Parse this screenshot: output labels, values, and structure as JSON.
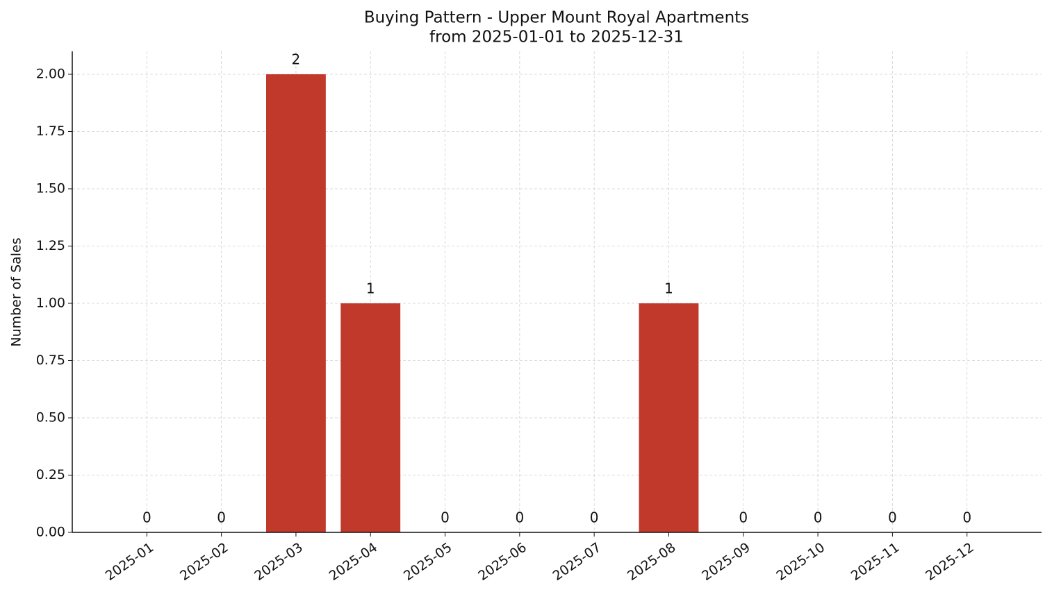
{
  "chart_data": {
    "type": "bar",
    "title": "Buying Pattern - Upper Mount Royal Apartments",
    "subtitle": "from 2025-01-01 to 2025-12-31",
    "y_label": "Number of Sales",
    "categories": [
      "2025-01",
      "2025-02",
      "2025-03",
      "2025-04",
      "2025-05",
      "2025-06",
      "2025-07",
      "2025-08",
      "2025-09",
      "2025-10",
      "2025-11",
      "2025-12"
    ],
    "values": [
      0,
      0,
      2,
      1,
      0,
      0,
      0,
      1,
      0,
      0,
      0,
      0
    ],
    "color": "#c0392b",
    "ylim": [
      0,
      2.1
    ],
    "yticks": [
      {
        "value": 0,
        "label": "0.00"
      },
      {
        "value": 0.25,
        "label": "0.25"
      },
      {
        "value": 0.5,
        "label": "0.50"
      },
      {
        "value": 0.75,
        "label": "0.75"
      },
      {
        "value": 1,
        "label": "1.00"
      },
      {
        "value": 1.25,
        "label": "1.25"
      },
      {
        "value": 1.5,
        "label": "1.50"
      },
      {
        "value": 1.75,
        "label": "1.75"
      },
      {
        "value": 2,
        "label": "2.00"
      }
    ],
    "grid": true
  }
}
